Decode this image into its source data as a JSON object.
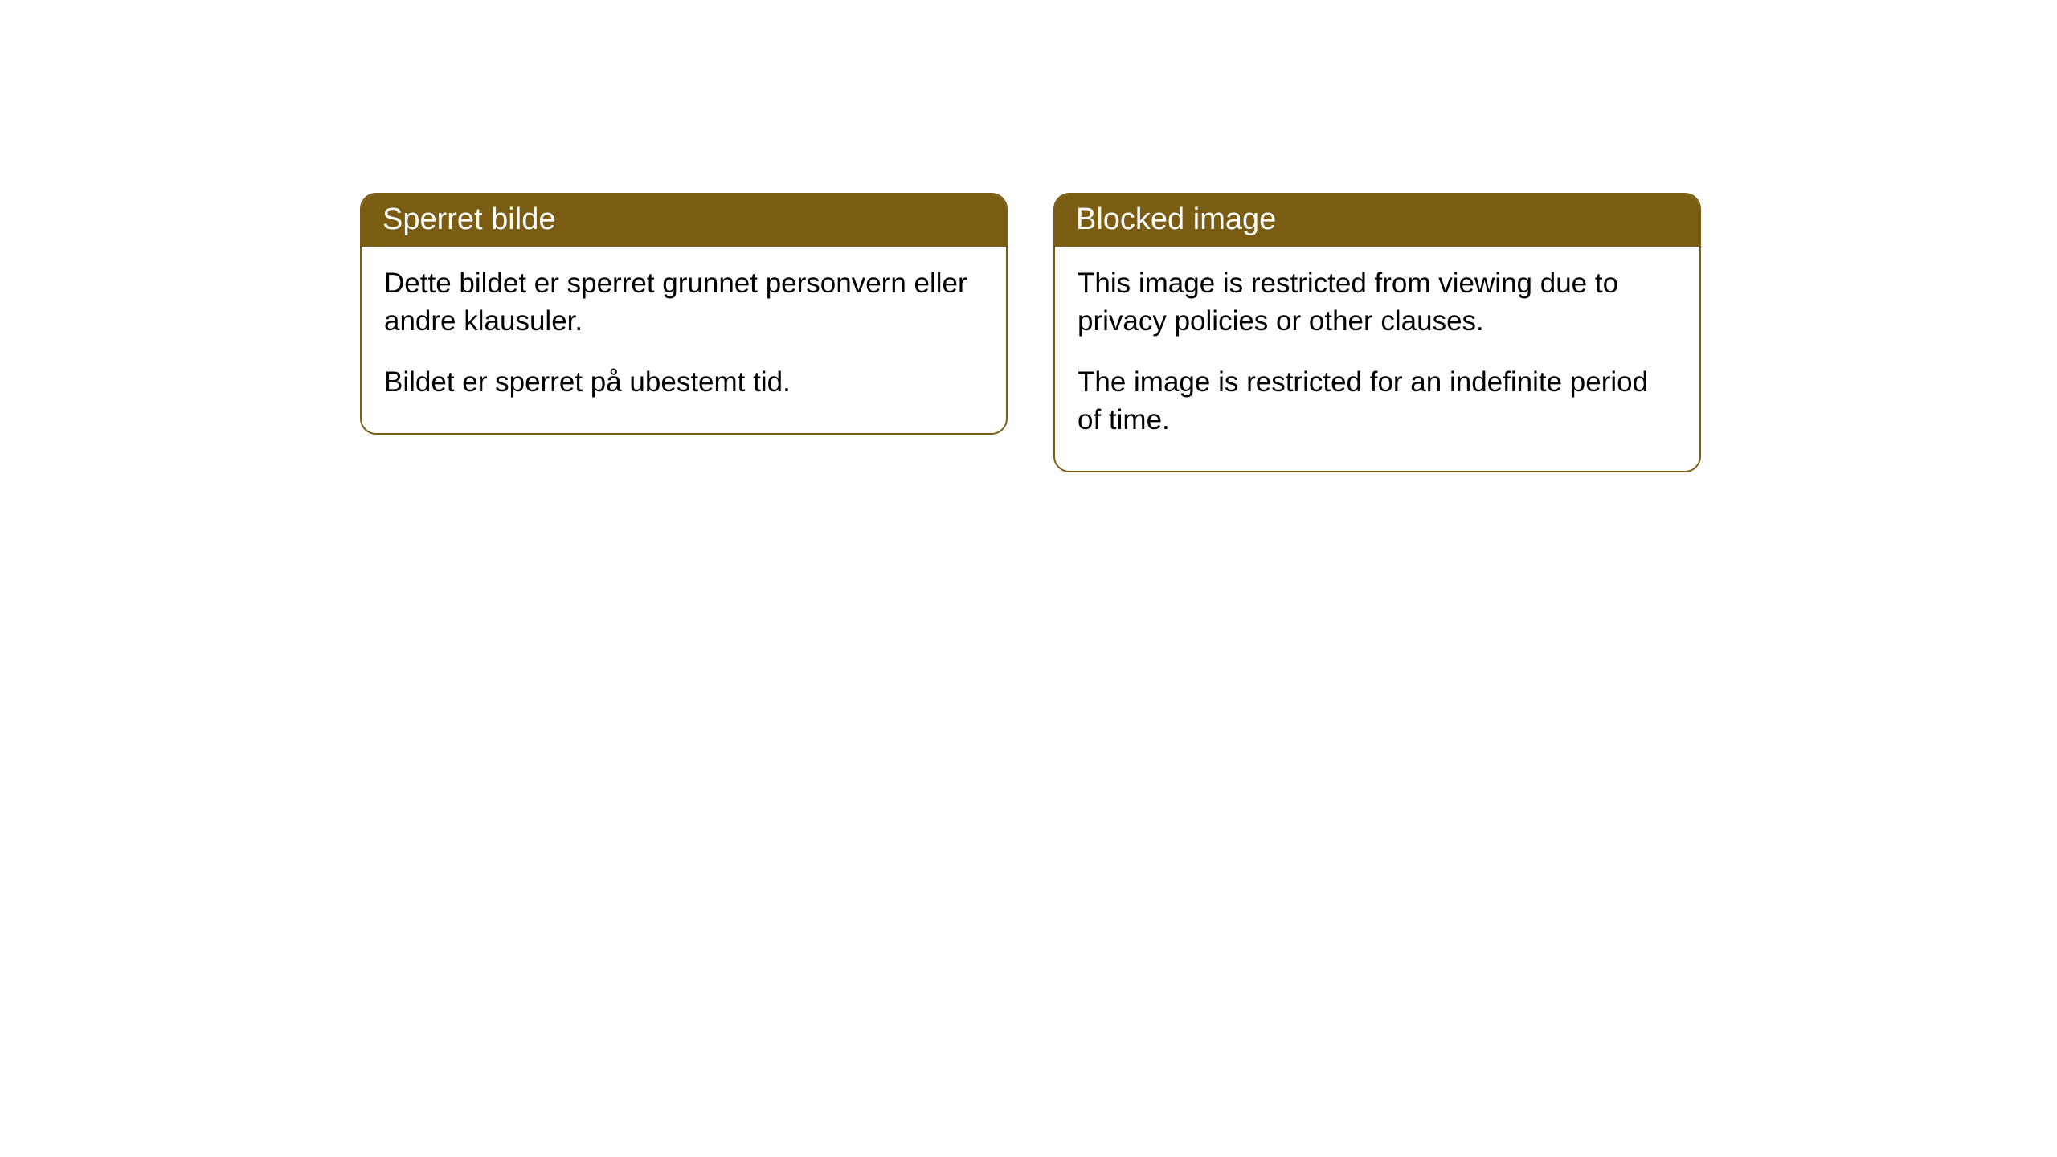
{
  "cards": [
    {
      "title": "Sperret bilde",
      "paragraph1": "Dette bildet er sperret grunnet personvern eller andre klausuler.",
      "paragraph2": "Bildet er sperret på ubestemt tid."
    },
    {
      "title": "Blocked image",
      "paragraph1": "This image is restricted from viewing due to privacy policies or other clauses.",
      "paragraph2": "The image is restricted for an indefinite period of time."
    }
  ],
  "style": {
    "header_background": "#7a5d13",
    "header_text_color": "#ffffff",
    "border_color": "#7a5d13",
    "body_background": "#ffffff",
    "body_text_color": "#000000",
    "border_radius": 20,
    "title_fontsize": 38,
    "body_fontsize": 35
  }
}
